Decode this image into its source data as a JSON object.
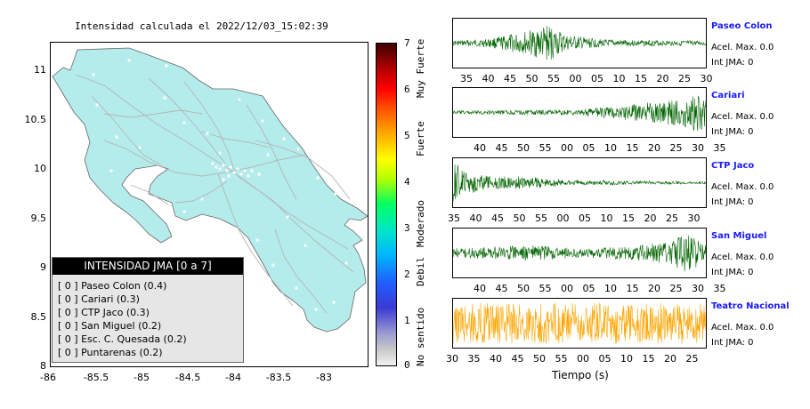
{
  "map": {
    "title": "Intensidad calculada el 2022/12/03_15:02:39",
    "lat_ticks": [
      "11",
      "10.5",
      "10",
      "9.5",
      "9",
      "8.5",
      "8"
    ],
    "lon_ticks": [
      "-86",
      "-85.5",
      "-85",
      "-84.5",
      "-84",
      "-83.5",
      "-83"
    ],
    "land_color": "#b4ecec",
    "road_color": "#b4b4b4"
  },
  "legend": {
    "title": "INTENSIDAD JMA [0 a 7]",
    "items": [
      {
        "text": "[ 0 ]  Paseo Colon (0.4)"
      },
      {
        "text": "[ 0 ]  Cariari (0.3)"
      },
      {
        "text": "[ 0 ]  CTP Jaco (0.3)"
      },
      {
        "text": "[ 0 ]  San Miguel (0.2)"
      },
      {
        "text": "[ 0 ]  Esc. C. Quesada (0.2)"
      },
      {
        "text": "[ 0 ]  Puntarenas (0.2)"
      }
    ]
  },
  "colorbar": {
    "ticks": [
      "7",
      "6",
      "5",
      "4",
      "3",
      "2",
      "1",
      "0"
    ],
    "labels": [
      "Muy Fuerte",
      "Fuerte",
      "Moderado",
      "Debil",
      "No sentido"
    ]
  },
  "stations": [
    {
      "name": "Paseo Colon",
      "acel": "Acel. Max. 0.0",
      "int": "Int JMA: 0",
      "color": "#006400",
      "ticks": [
        "35",
        "40",
        "45",
        "50",
        "55",
        "00",
        "05",
        "10",
        "15",
        "20",
        "25",
        "30"
      ]
    },
    {
      "name": "Cariari",
      "acel": "Acel. Max. 0.0",
      "int": "Int JMA: 0",
      "color": "#006400",
      "ticks": [
        "40",
        "45",
        "50",
        "55",
        "00",
        "05",
        "10",
        "15",
        "20",
        "25",
        "30",
        "35"
      ]
    },
    {
      "name": "CTP Jaco",
      "acel": "Acel. Max. 0.0",
      "int": "Int JMA: 0",
      "color": "#006400",
      "ticks": [
        "35",
        "40",
        "45",
        "50",
        "55",
        "00",
        "05",
        "10",
        "15",
        "20",
        "25",
        "30"
      ]
    },
    {
      "name": "San Miguel",
      "acel": "Acel. Max. 0.0",
      "int": "Int JMA: 0",
      "color": "#006400",
      "ticks": [
        "40",
        "45",
        "50",
        "55",
        "00",
        "05",
        "10",
        "15",
        "20",
        "25",
        "30",
        "35"
      ]
    },
    {
      "name": "Teatro Nacional",
      "acel": "Acel. Max. 0.0",
      "int": "Int JMA: 0",
      "color": "#ffa500",
      "ticks": [
        "30",
        "35",
        "40",
        "45",
        "50",
        "55",
        "00",
        "05",
        "10",
        "15",
        "20",
        "25"
      ]
    }
  ],
  "xlabel": "Tiempo (s)",
  "chart_data": {
    "type": "line",
    "series": [
      {
        "name": "Paseo Colon",
        "envelope": [
          [
            0.0,
            0.1
          ],
          [
            0.15,
            0.2
          ],
          [
            0.3,
            0.55
          ],
          [
            0.38,
            0.8
          ],
          [
            0.45,
            0.35
          ],
          [
            0.6,
            0.15
          ],
          [
            1.0,
            0.1
          ]
        ]
      },
      {
        "name": "Cariari",
        "envelope": [
          [
            0.0,
            0.08
          ],
          [
            0.5,
            0.12
          ],
          [
            0.7,
            0.35
          ],
          [
            0.9,
            0.6
          ],
          [
            0.98,
            0.9
          ],
          [
            1.0,
            0.7
          ]
        ]
      },
      {
        "name": "CTP Jaco",
        "envelope": [
          [
            0.0,
            0.95
          ],
          [
            0.05,
            0.5
          ],
          [
            0.15,
            0.3
          ],
          [
            0.33,
            0.25
          ],
          [
            0.45,
            0.12
          ],
          [
            1.0,
            0.05
          ]
        ]
      },
      {
        "name": "San Miguel",
        "envelope": [
          [
            0.0,
            0.2
          ],
          [
            0.3,
            0.35
          ],
          [
            0.5,
            0.2
          ],
          [
            0.7,
            0.3
          ],
          [
            0.85,
            0.5
          ],
          [
            0.92,
            0.9
          ],
          [
            1.0,
            0.4
          ]
        ]
      },
      {
        "name": "Teatro Nacional",
        "envelope": [
          [
            0.0,
            0.9
          ],
          [
            1.0,
            0.9
          ]
        ]
      }
    ]
  }
}
